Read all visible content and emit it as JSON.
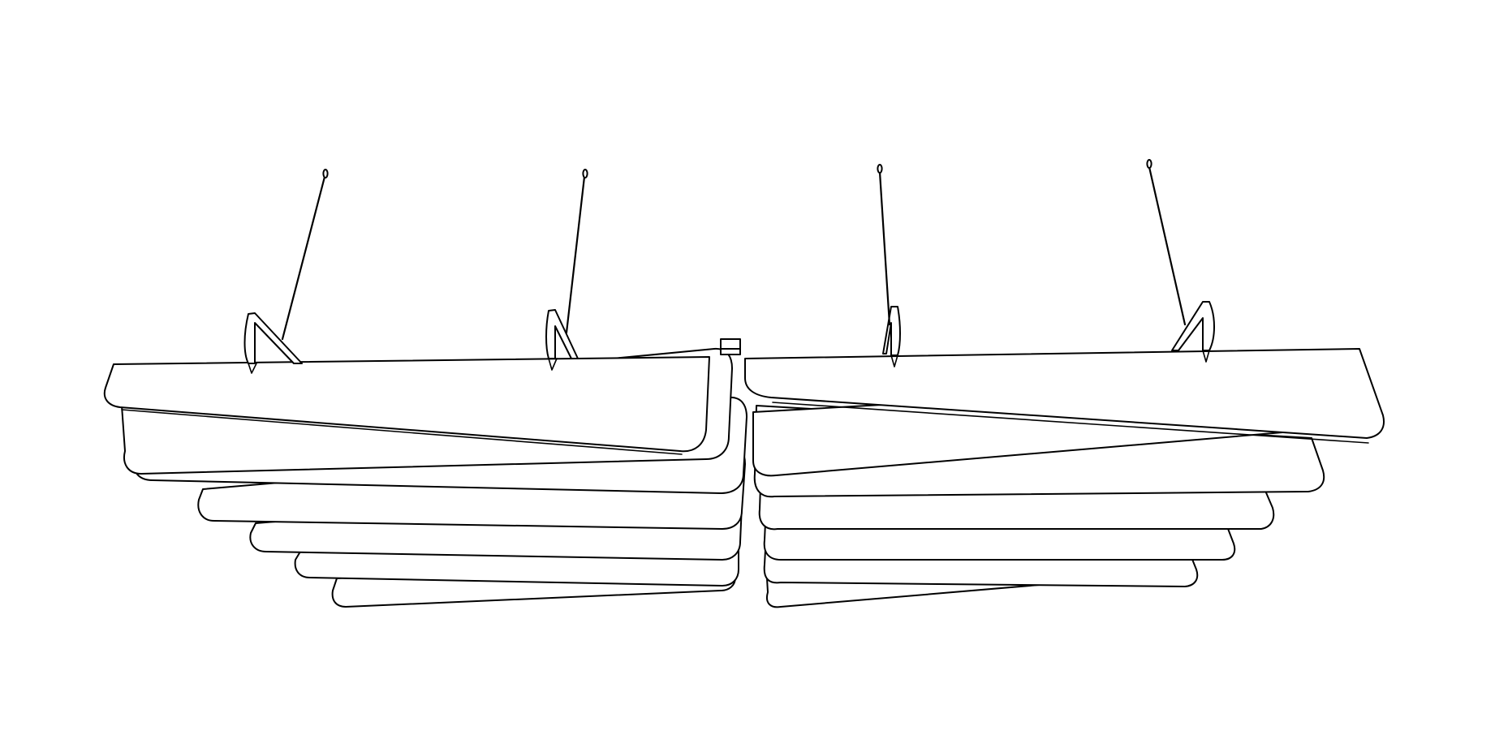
{
  "colors": {
    "background": "#ffffff",
    "line": "#000000",
    "fill": "#ffffff"
  },
  "icons": {
    "suspension": "wire-hanger-icon",
    "bracket": "mounting-bracket-icon",
    "connector": "center-connector-icon"
  }
}
